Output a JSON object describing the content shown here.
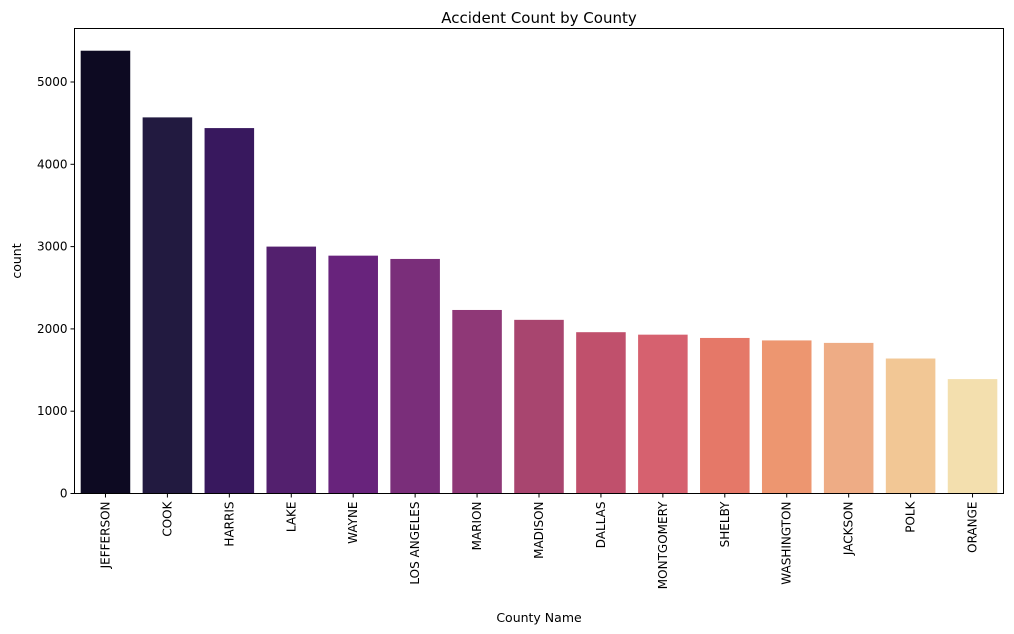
{
  "chart_data": {
    "type": "bar",
    "title": "Accident Count by County",
    "xlabel": "County Name",
    "ylabel": "count",
    "categories": [
      "JEFFERSON",
      "COOK",
      "HARRIS",
      "LAKE",
      "WAYNE",
      "LOS ANGELES",
      "MARION",
      "MADISON",
      "DALLAS",
      "MONTGOMERY",
      "SHELBY",
      "WASHINGTON",
      "JACKSON",
      "POLK",
      "ORANGE"
    ],
    "values": [
      5380,
      4570,
      4440,
      3000,
      2890,
      2850,
      2230,
      2110,
      1960,
      1930,
      1890,
      1860,
      1830,
      1640,
      1390
    ],
    "colors": [
      "#0d0a22",
      "#221a40",
      "#38185e",
      "#53206e",
      "#68237c",
      "#7a2e7a",
      "#8f3877",
      "#a8456f",
      "#c0506c",
      "#d6616f",
      "#e57868",
      "#ed9670",
      "#eeac85",
      "#f2c795",
      "#f3dfae"
    ],
    "ylim": [
      0,
      5650
    ],
    "yticks": [
      0,
      1000,
      2000,
      3000,
      4000,
      5000
    ],
    "grid": false,
    "legend": "none"
  }
}
